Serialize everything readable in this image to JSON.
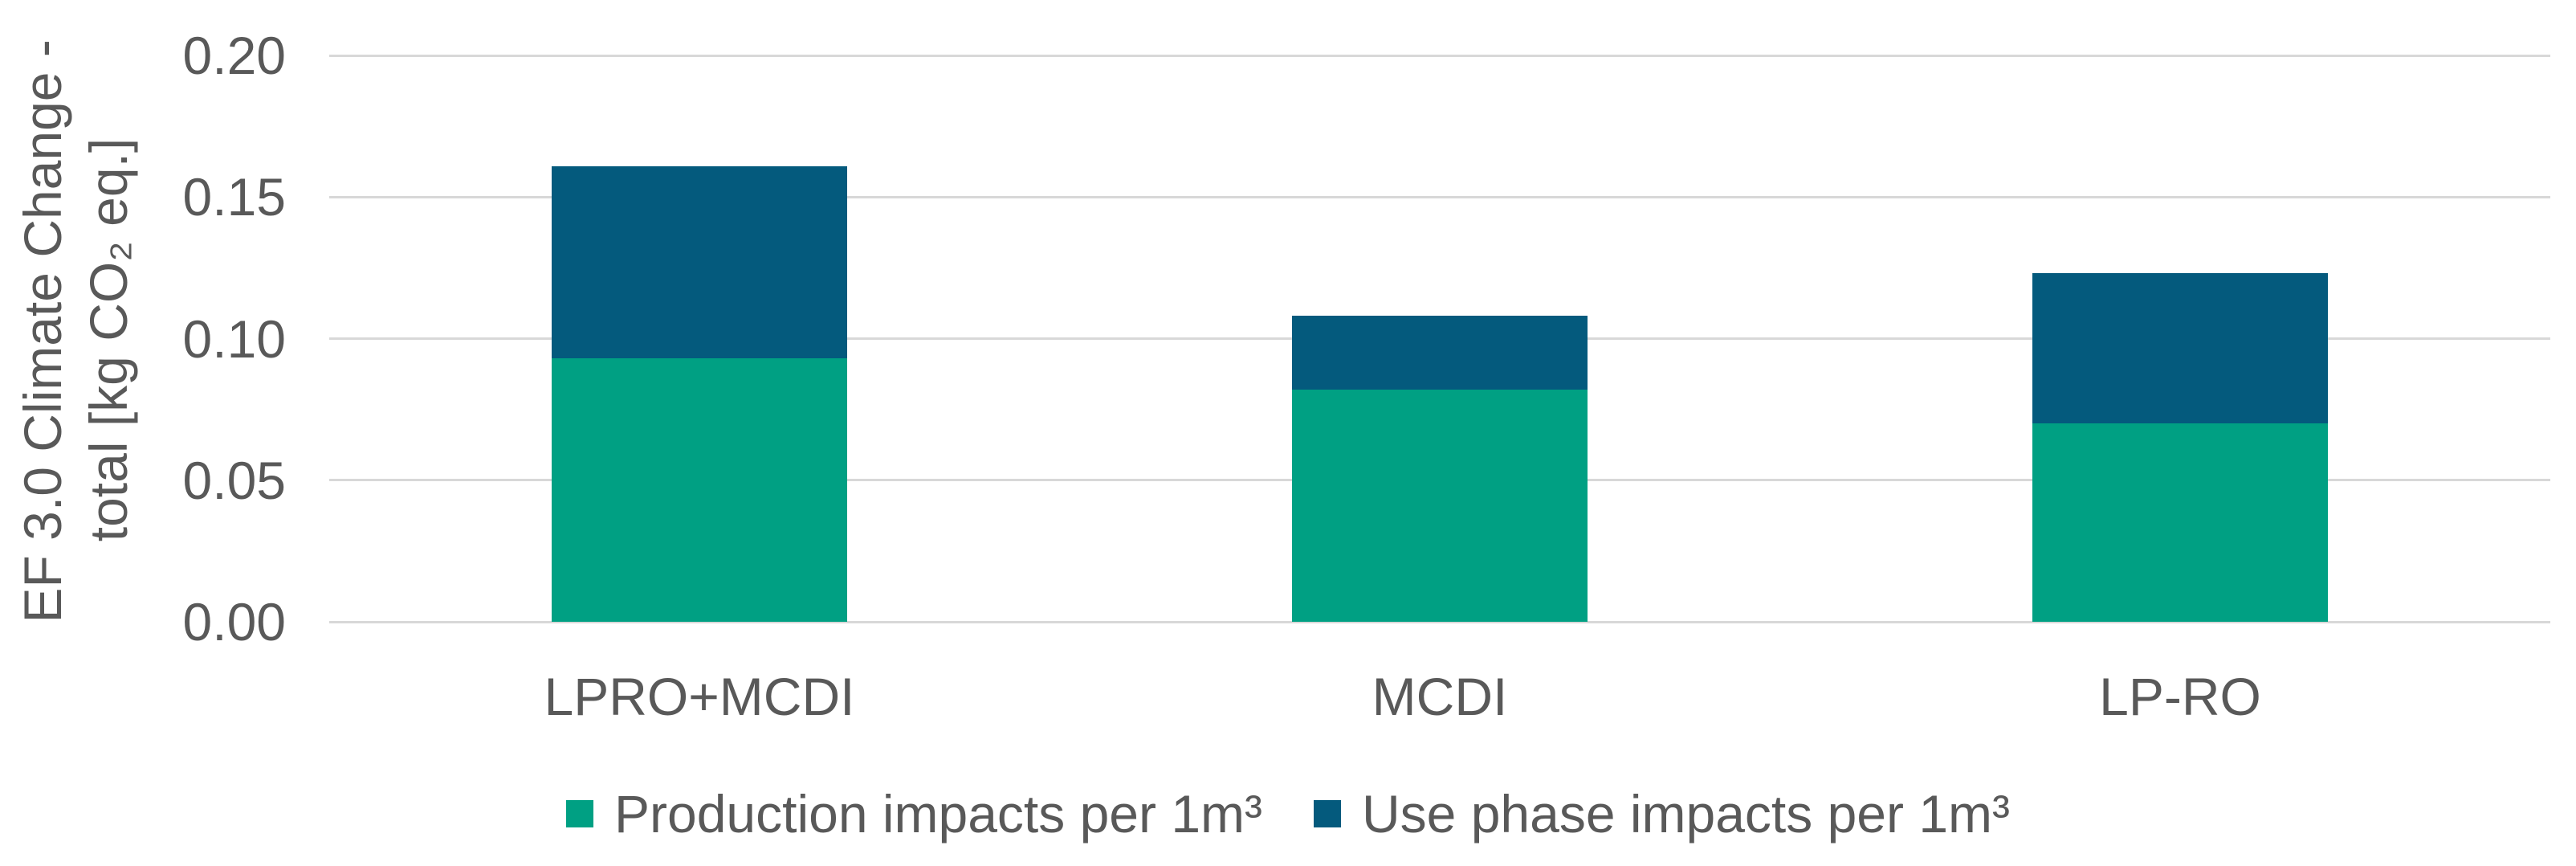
{
  "chart_data": {
    "type": "bar",
    "stacked": true,
    "categories": [
      "LPRO+MCDI",
      "MCDI",
      "LP-RO"
    ],
    "series": [
      {
        "name": "Production impacts per 1m³",
        "color": "#00A083",
        "values": [
          0.093,
          0.082,
          0.07
        ]
      },
      {
        "name": "Use phase impacts per 1m³",
        "color": "#045A7D",
        "values": [
          0.068,
          0.026,
          0.053
        ]
      }
    ],
    "totals": [
      0.161,
      0.108,
      0.123
    ],
    "ylabel_lines": [
      "EF 3.0 Climate Change -",
      "total [kg CO₂ eq.]"
    ],
    "ylabel": "EF 3.0 Climate Change - total [kg CO₂ eq.]",
    "ylim": [
      0,
      0.2
    ],
    "ytick_step": 0.05,
    "yticks": [
      "0.00",
      "0.05",
      "0.10",
      "0.15",
      "0.20"
    ],
    "grid": true,
    "legend_position": "bottom",
    "xlabel": "",
    "title": ""
  },
  "colors": {
    "background": "#ffffff",
    "grid": "#d8d8d8",
    "text": "#595959",
    "production": "#00A083",
    "use_phase": "#045A7D"
  }
}
